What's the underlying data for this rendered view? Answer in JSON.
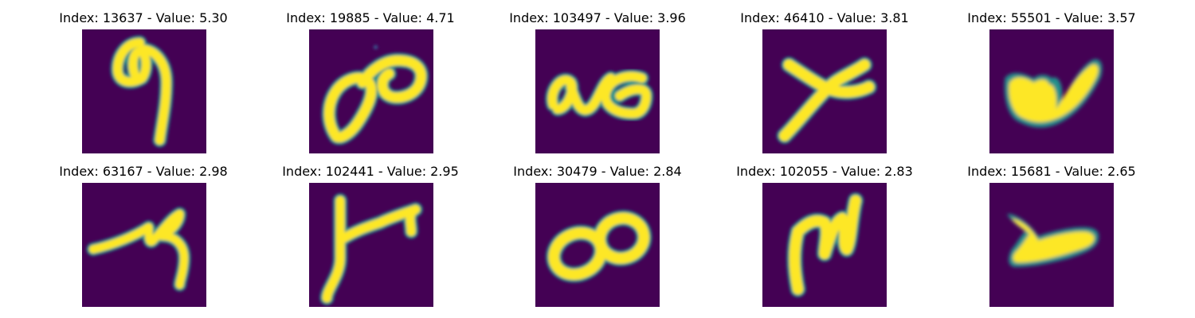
{
  "figure": {
    "background": "#ffffff",
    "image_background": "#440154",
    "colormap": [
      "#440154",
      "#3b528b",
      "#21918c",
      "#5ec962",
      "#fde725"
    ],
    "panels": [
      {
        "title": "Index: 13637 - Value: 5.30",
        "glyph": "nine-like-digit"
      },
      {
        "title": "Index: 19885 - Value: 4.71",
        "glyph": "infinity-like-loops"
      },
      {
        "title": "Index: 103497 - Value: 3.96",
        "glyph": "ac-like-letters"
      },
      {
        "title": "Index: 46410 - Value: 3.81",
        "glyph": "x-like-cross"
      },
      {
        "title": "Index: 55501 - Value: 3.57",
        "glyph": "filled-w-shape"
      },
      {
        "title": "Index: 63167 - Value: 2.98",
        "glyph": "zigzag-stroke"
      },
      {
        "title": "Index: 102441 - Value: 2.95",
        "glyph": "y-like-arrow"
      },
      {
        "title": "Index: 30479 - Value: 2.84",
        "glyph": "double-o-loops"
      },
      {
        "title": "Index: 102055 - Value: 2.83",
        "glyph": "m-like-shape"
      },
      {
        "title": "Index: 15681 - Value: 2.65",
        "glyph": "lambda-like-shape"
      }
    ]
  }
}
